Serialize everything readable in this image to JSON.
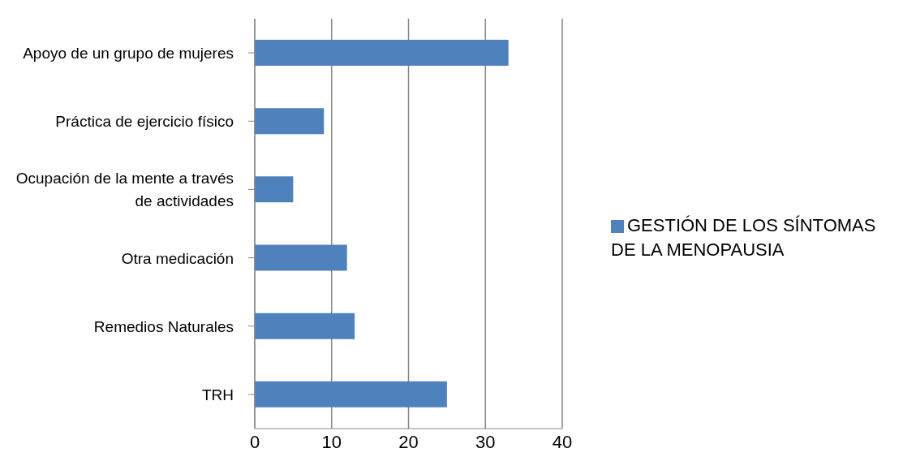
{
  "chart_data": {
    "type": "bar",
    "orientation": "horizontal",
    "categories": [
      "Apoyo de un grupo de mujeres",
      "Práctica de ejercicio físico",
      "Ocupación de la mente a través de actividades",
      "Otra medicación",
      "Remedios Naturales",
      "TRH"
    ],
    "series": [
      {
        "name": "GESTIÓN DE LOS SÍNTOMAS DE LA MENOPAUSIA",
        "color": "#4f81bd",
        "values": [
          33,
          9,
          5,
          12,
          13,
          25
        ]
      }
    ],
    "xlim": [
      0,
      40
    ],
    "xticks": [
      0,
      10,
      20,
      30,
      40
    ],
    "grid": "x",
    "legend": "right"
  }
}
